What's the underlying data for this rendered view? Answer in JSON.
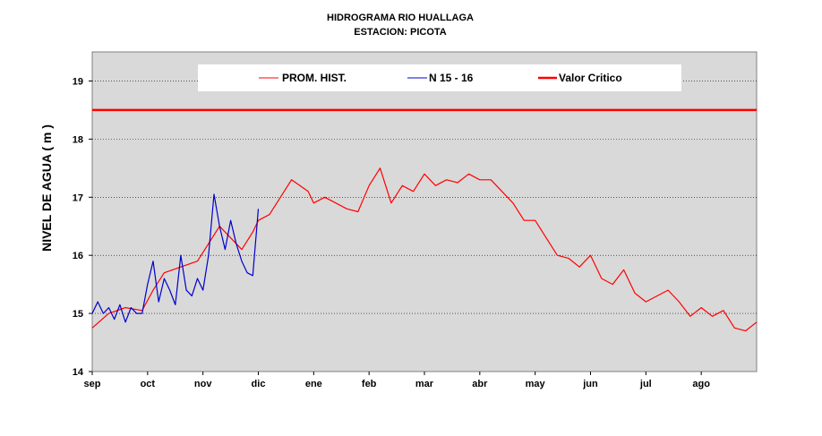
{
  "chart_data": {
    "type": "line",
    "title": "HIDROGRAMA RIO HUALLAGA",
    "subtitle": "ESTACION: PICOTA",
    "ylabel": "NIVEL DE AGUA ( m )",
    "xlabel": "",
    "categories": [
      "sep",
      "oct",
      "nov",
      "dic",
      "ene",
      "feb",
      "mar",
      "abr",
      "may",
      "jun",
      "jul",
      "ago"
    ],
    "ylim": [
      14,
      19.5
    ],
    "yticks": [
      14,
      15,
      16,
      17,
      18,
      19
    ],
    "grid": true,
    "legend_position": "top",
    "critical_value": 18.5,
    "series": [
      {
        "name": "PROM. HIST.",
        "color": "#ff0000",
        "x": [
          0,
          0.3,
          0.6,
          0.9,
          1.1,
          1.3,
          1.6,
          1.9,
          2.1,
          2.3,
          2.5,
          2.7,
          2.9,
          3.0,
          3.2,
          3.4,
          3.6,
          3.9,
          4.0,
          4.2,
          4.4,
          4.6,
          4.8,
          5.0,
          5.2,
          5.4,
          5.6,
          5.8,
          6.0,
          6.2,
          6.4,
          6.6,
          6.8,
          7.0,
          7.2,
          7.4,
          7.6,
          7.8,
          8.0,
          8.2,
          8.4,
          8.6,
          8.8,
          9.0,
          9.2,
          9.4,
          9.6,
          9.8,
          10.0,
          10.2,
          10.4,
          10.6,
          10.8,
          11.0,
          11.2,
          11.4,
          11.6,
          11.8,
          12.0
        ],
        "values": [
          14.75,
          15.0,
          15.1,
          15.05,
          15.4,
          15.7,
          15.8,
          15.9,
          16.2,
          16.5,
          16.3,
          16.1,
          16.4,
          16.6,
          16.7,
          17.0,
          17.3,
          17.1,
          16.9,
          17.0,
          16.9,
          16.8,
          16.75,
          17.2,
          17.5,
          16.9,
          17.2,
          17.1,
          17.4,
          17.2,
          17.3,
          17.25,
          17.4,
          17.3,
          17.3,
          17.1,
          16.9,
          16.6,
          16.6,
          16.3,
          16.0,
          15.95,
          15.8,
          16.0,
          15.6,
          15.5,
          15.75,
          15.35,
          15.2,
          15.3,
          15.4,
          15.2,
          14.95,
          15.1,
          14.95,
          15.05,
          14.75,
          14.7,
          14.85
        ]
      },
      {
        "name": "N 15 - 16",
        "color": "#0000cc",
        "x": [
          0,
          0.1,
          0.2,
          0.3,
          0.4,
          0.5,
          0.6,
          0.7,
          0.8,
          0.9,
          1.0,
          1.1,
          1.2,
          1.3,
          1.4,
          1.5,
          1.6,
          1.7,
          1.8,
          1.9,
          2.0,
          2.1,
          2.2,
          2.3,
          2.4,
          2.5,
          2.6,
          2.7,
          2.8,
          2.9,
          3.0
        ],
        "values": [
          15.0,
          15.2,
          15.0,
          15.1,
          14.9,
          15.15,
          14.85,
          15.1,
          15.0,
          15.0,
          15.5,
          15.9,
          15.2,
          15.6,
          15.4,
          15.15,
          16.0,
          15.4,
          15.3,
          15.6,
          15.4,
          16.0,
          17.05,
          16.5,
          16.1,
          16.6,
          16.2,
          15.9,
          15.7,
          15.65,
          16.8
        ]
      },
      {
        "name": "Valor Critico",
        "color": "#ff0000",
        "x": [
          0,
          12
        ],
        "values": [
          18.5,
          18.5
        ]
      }
    ]
  }
}
